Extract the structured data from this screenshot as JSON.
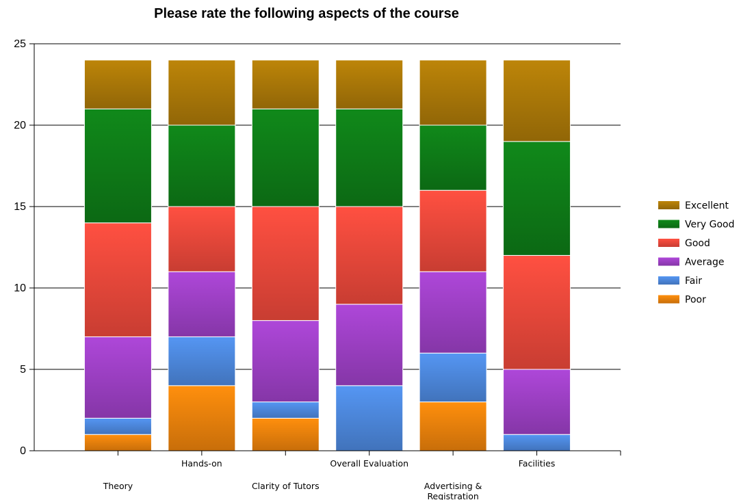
{
  "chart_data": {
    "type": "bar",
    "stacked": true,
    "title": "Please rate the following aspects of the course",
    "xlabel": "",
    "ylabel": "",
    "ylim": [
      0,
      25
    ],
    "yticks": [
      0,
      5,
      10,
      15,
      20,
      25
    ],
    "grid": true,
    "legend_position": "right",
    "categories": [
      [
        "Theory"
      ],
      [
        "Hands-on"
      ],
      [
        "Clarity of Tutors"
      ],
      [
        "Overall Evaluation"
      ],
      [
        "Advertising &",
        "Registration"
      ],
      [
        "Facilities"
      ]
    ],
    "series": [
      {
        "name": "Poor",
        "color": "#E8800C",
        "values": [
          1,
          4,
          2,
          0,
          3,
          0
        ]
      },
      {
        "name": "Fair",
        "color": "#4C86D9",
        "values": [
          1,
          3,
          1,
          4,
          3,
          1
        ]
      },
      {
        "name": "Average",
        "color": "#9B3FC2",
        "values": [
          5,
          4,
          5,
          5,
          5,
          4
        ]
      },
      {
        "name": "Good",
        "color": "#E8473A",
        "values": [
          7,
          4,
          7,
          6,
          5,
          7
        ]
      },
      {
        "name": "Very Good",
        "color": "#0E7A17",
        "values": [
          7,
          5,
          6,
          6,
          4,
          7
        ]
      },
      {
        "name": "Excellent",
        "color": "#A97708",
        "values": [
          3,
          4,
          3,
          3,
          4,
          5
        ]
      }
    ],
    "legend_order": [
      "Excellent",
      "Very Good",
      "Good",
      "Average",
      "Fair",
      "Poor"
    ]
  }
}
